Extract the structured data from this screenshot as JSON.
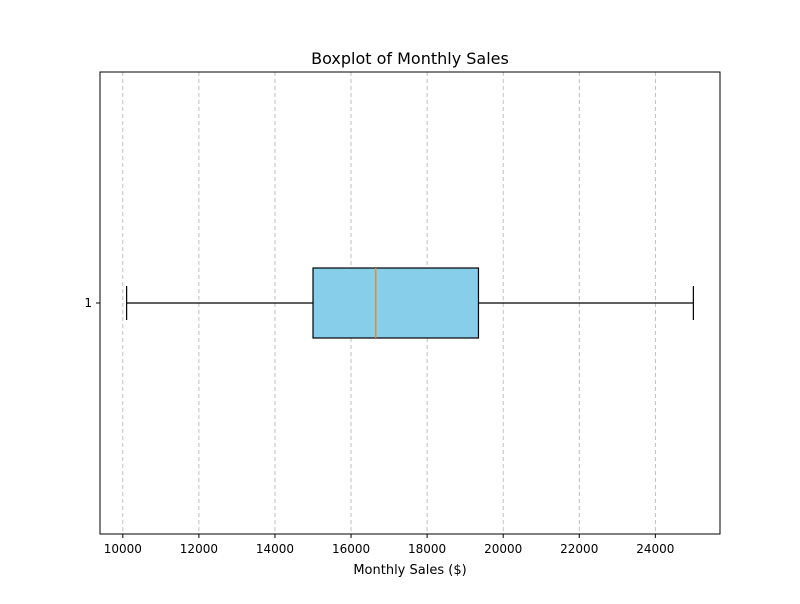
{
  "chart_data": {
    "type": "boxplot",
    "orientation": "horizontal",
    "title": "Boxplot of Monthly Sales",
    "xlabel": "Monthly Sales ($)",
    "ylabel": "",
    "xlim": [
      9400,
      25700
    ],
    "xticks": [
      10000,
      12000,
      14000,
      16000,
      18000,
      20000,
      22000,
      24000
    ],
    "xtick_labels": [
      "10000",
      "12000",
      "14000",
      "16000",
      "18000",
      "20000",
      "22000",
      "24000"
    ],
    "grid": {
      "x": true,
      "y": false,
      "style": "dashed"
    },
    "categories": [
      "1"
    ],
    "series": [
      {
        "whisker_low": 10100,
        "q1": 15000,
        "median": 16650,
        "q3": 19350,
        "whisker_high": 25000
      }
    ],
    "colors": {
      "box_fill": "#87ceeb",
      "box_edge": "#000000",
      "median": "#ff7f0e",
      "whisker": "#000000",
      "grid": "#b0b0b0"
    }
  }
}
